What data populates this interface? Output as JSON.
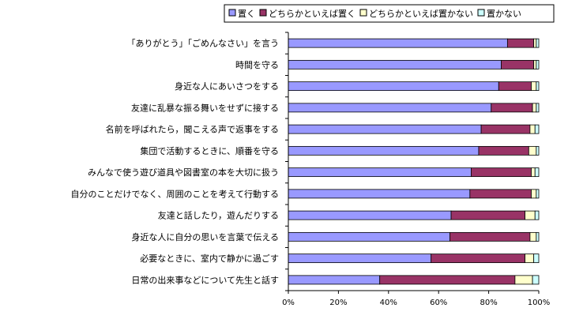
{
  "chart_data": {
    "type": "bar",
    "orientation": "horizontal",
    "stacked": "percent",
    "legend_position": "top-right",
    "grid": false,
    "xlim": [
      0,
      100
    ],
    "x_ticks": [
      "0%",
      "20%",
      "40%",
      "60%",
      "80%",
      "100%"
    ],
    "categories": [
      "「ありがとう」「ごめんなさい」を言う",
      "時間を守る",
      "身近な人にあいさつをする",
      "友達に乱暴な振る舞いをせずに接する",
      "名前を呼ばれたら，聞こえる声で返事をする",
      "集団で活動するときに、順番を守る",
      "みんなで使う遊び道具や図書室の本を大切に扱う",
      "自分のことだけでなく、周囲のことを考えて行動する",
      "友達と話したり，遊んだりする",
      "身近な人に自分の思いを言葉で伝える",
      "必要なときに、室内で静かに過ごす",
      "日常の出来事などについて先生と話す"
    ],
    "series": [
      {
        "name": "置く",
        "color": "#9999ff",
        "values": [
          87.5,
          85,
          84,
          81,
          77,
          76,
          73,
          72.5,
          65,
          64.5,
          57,
          36.5
        ]
      },
      {
        "name": "どちらかといえば置く",
        "color": "#993366",
        "values": [
          10.5,
          13,
          13,
          16.5,
          19.5,
          20,
          24,
          24.5,
          29.5,
          32,
          37.5,
          54
        ]
      },
      {
        "name": "どちらかといえば置かない",
        "color": "#ffffcc",
        "values": [
          1,
          1,
          2,
          1.5,
          2,
          3,
          1.5,
          2,
          4,
          2.5,
          3.5,
          7
        ]
      },
      {
        "name": "置かない",
        "color": "#ccffff",
        "values": [
          1,
          1,
          1,
          1,
          1.5,
          1,
          1.5,
          1,
          1.5,
          1,
          2,
          2.5
        ]
      }
    ]
  }
}
